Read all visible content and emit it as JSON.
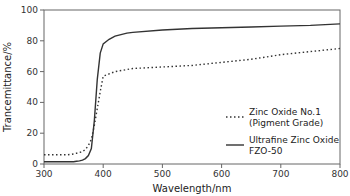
{
  "chart_data": {
    "type": "line",
    "xlabel": "Wavelength/nm",
    "ylabel": "Trancemittance/%",
    "xlim": [
      300,
      800
    ],
    "ylim": [
      0,
      100
    ],
    "xticks": [
      300,
      400,
      500,
      600,
      700,
      800
    ],
    "yticks": [
      0,
      20,
      40,
      60,
      80,
      100
    ],
    "grid": false,
    "legend": "lower right",
    "series": [
      {
        "name": "Ultrafine Zinc Oxide\nFZO-50",
        "color": "#333333",
        "line_style": "solid",
        "x": [
          300,
          320,
          340,
          350,
          355,
          360,
          365,
          370,
          375,
          380,
          385,
          390,
          395,
          400,
          410,
          420,
          430,
          440,
          450,
          500,
          550,
          600,
          650,
          700,
          750,
          800
        ],
        "values": [
          1.5,
          1.5,
          1.5,
          1.5,
          1.8,
          2.0,
          2.5,
          3.5,
          5.5,
          10,
          28,
          55,
          72,
          78,
          81,
          83,
          84,
          85,
          85.5,
          87,
          88,
          88.5,
          89,
          89.5,
          90,
          91
        ]
      },
      {
        "name": "Zinc Oxide No.1\n(Pigment Grade)",
        "color": "#333333",
        "line_style": "dotted",
        "x": [
          300,
          320,
          340,
          350,
          355,
          360,
          365,
          370,
          375,
          380,
          385,
          390,
          395,
          400,
          420,
          450,
          500,
          550,
          600,
          650,
          700,
          750,
          800
        ],
        "values": [
          6,
          6,
          6,
          6.5,
          7,
          7.5,
          8,
          9.5,
          12,
          16,
          25,
          36,
          47,
          57,
          60,
          62,
          63,
          64,
          66,
          68,
          71,
          73,
          75
        ]
      }
    ]
  }
}
